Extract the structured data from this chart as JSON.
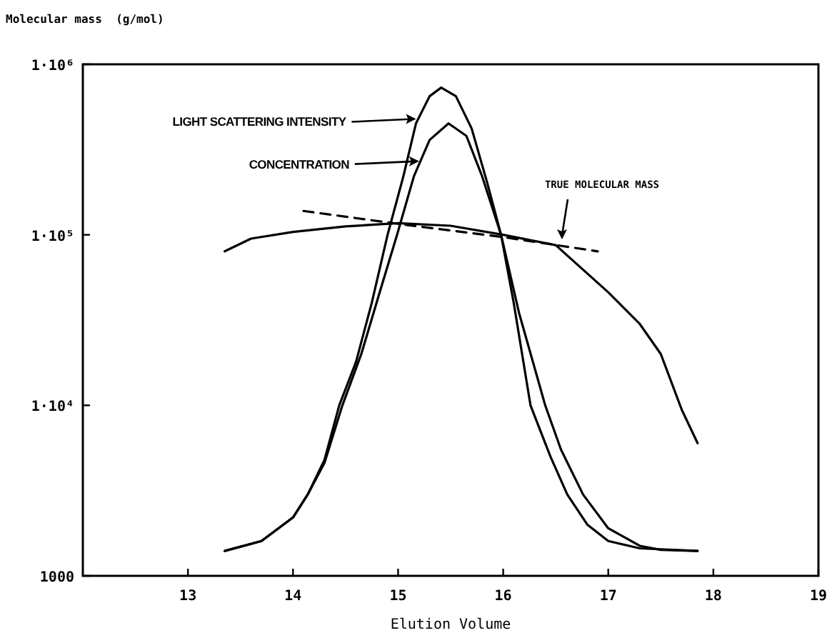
{
  "chart_data": {
    "type": "line",
    "xlabel": "Elution Volume",
    "ylabel": "Molecular mass  (g/mol)",
    "log": "y",
    "grid": false,
    "marker": "none",
    "xlim": [
      12,
      19
    ],
    "xticks": [
      13,
      14,
      15,
      16,
      17,
      18,
      19
    ],
    "ylim": [
      1000,
      1000000
    ],
    "yticks": [
      {
        "value": 1000,
        "label": "1000"
      },
      {
        "value": 10000,
        "label": "1·10⁴"
      },
      {
        "value": 100000,
        "label": "1·10⁵"
      },
      {
        "value": 1000000,
        "label": "1·10⁶"
      }
    ],
    "series": [
      {
        "color": "#000000",
        "line_style": "solid",
        "x": [
          13.35,
          13.7,
          14.0,
          14.14,
          14.3,
          14.44,
          14.6,
          14.75,
          14.9,
          15.05,
          15.17,
          15.3,
          15.41,
          15.55,
          15.7,
          15.85,
          15.98,
          16.1,
          16.26,
          16.45,
          16.61,
          16.8,
          17.0,
          17.3,
          17.85
        ],
        "values": [
          1400,
          1600,
          2200,
          3000,
          4800,
          10000,
          18000,
          40000,
          100000,
          220000,
          450000,
          650000,
          730000,
          650000,
          420000,
          200000,
          100000,
          40000,
          10000,
          5000,
          3000,
          2000,
          1600,
          1450,
          1400
        ]
      },
      {
        "color": "#000000",
        "line_style": "solid",
        "x": [
          13.35,
          13.7,
          14.0,
          14.14,
          14.3,
          14.47,
          14.65,
          14.82,
          14.99,
          15.15,
          15.3,
          15.48,
          15.65,
          15.8,
          15.98,
          16.15,
          16.4,
          16.55,
          16.76,
          17.0,
          17.3,
          17.5,
          17.85
        ],
        "values": [
          1400,
          1600,
          2200,
          3000,
          4600,
          10000,
          20000,
          45000,
          100000,
          220000,
          360000,
          450000,
          380000,
          220000,
          100000,
          35000,
          10000,
          5500,
          3000,
          1900,
          1500,
          1420,
          1400
        ]
      },
      {
        "color": "#000000",
        "line_style": "solid",
        "x": [
          13.35,
          13.6,
          14.0,
          14.5,
          15.0,
          15.5,
          16.0,
          16.5,
          17.0,
          17.3,
          17.5,
          17.7,
          17.85
        ],
        "values": [
          80000,
          95000,
          104000,
          112000,
          117000,
          113000,
          100000,
          87000,
          46000,
          30000,
          20000,
          9400,
          6000
        ]
      },
      {
        "color": "#000000",
        "line_style": "dashed",
        "x": [
          14.1,
          15.0,
          16.0,
          16.9
        ],
        "values": [
          138000,
          116000,
          97000,
          80000
        ]
      }
    ],
    "annotations": [
      {
        "text": "LIGHT SCATTERING INTENSITY",
        "x": 15.17,
        "y": 460000
      },
      {
        "text": "CONCENTRATION",
        "x": 15.2,
        "y": 260000
      },
      {
        "text": "TRUE MOLECULAR MASS",
        "x": 16.56,
        "y": 94000
      }
    ]
  }
}
